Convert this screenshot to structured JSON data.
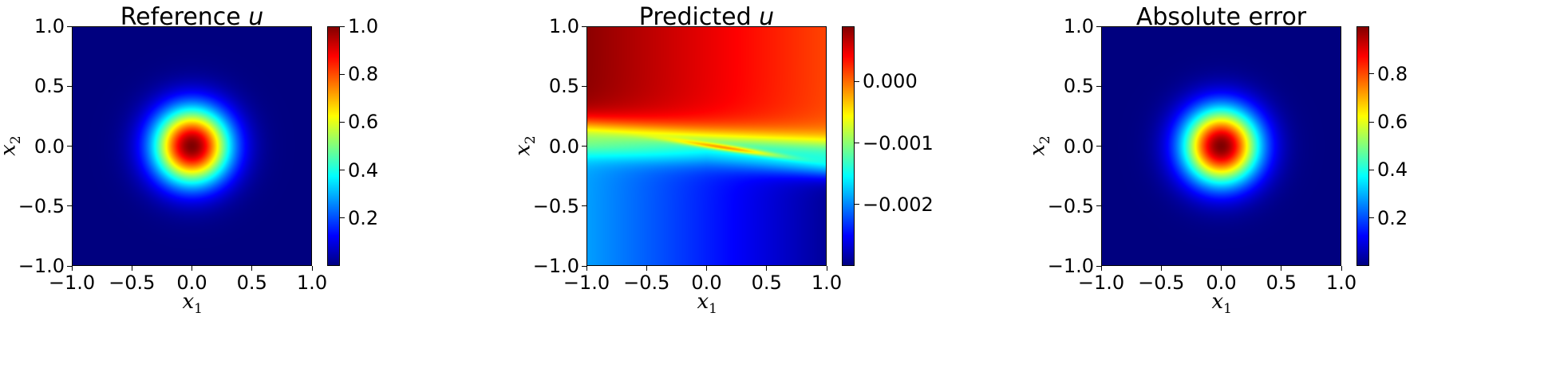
{
  "figure": {
    "colormap": "jet",
    "colormap_stops": [
      "#00007f",
      "#0000ff",
      "#007fff",
      "#00ffff",
      "#7fff7f",
      "#ffff00",
      "#ff7f00",
      "#ff0000",
      "#7f0000"
    ]
  },
  "chart_data": [
    {
      "type": "heatmap",
      "title": "Reference u",
      "title_prefix": "Reference ",
      "title_symbol": "u",
      "xlabel": "x1",
      "xlabel_base": "x",
      "xlabel_sub": "1",
      "ylabel": "x2",
      "ylabel_base": "x",
      "ylabel_sub": "2",
      "xlim": [
        -1.0,
        1.0
      ],
      "ylim": [
        -1.0,
        1.0
      ],
      "xticks": [
        -1.0,
        -0.5,
        0.0,
        0.5,
        1.0
      ],
      "xtick_labels": [
        "−1.0",
        "−0.5",
        "0.0",
        "0.5",
        "1.0"
      ],
      "yticks": [
        -1.0,
        -0.5,
        0.0,
        0.5,
        1.0
      ],
      "ytick_labels": [
        "−1.0",
        "−0.5",
        "0.0",
        "0.5",
        "1.0"
      ],
      "colorbar": {
        "range": [
          0.0,
          1.0
        ],
        "ticks": [
          0.2,
          0.4,
          0.6,
          0.8,
          1.0
        ],
        "tick_labels": [
          "0.2",
          "0.4",
          "0.6",
          "0.8",
          "1.0"
        ]
      },
      "field": {
        "kind": "gaussian",
        "center": [
          0.0,
          0.0
        ],
        "peak": 1.0,
        "base": 0.0,
        "sigma": 0.22
      }
    },
    {
      "type": "heatmap",
      "title": "Predicted u",
      "title_prefix": "Predicted ",
      "title_symbol": "u",
      "xlabel": "x1",
      "xlabel_base": "x",
      "xlabel_sub": "1",
      "ylabel": "x2",
      "ylabel_base": "x",
      "ylabel_sub": "2",
      "xlim": [
        -1.0,
        1.0
      ],
      "ylim": [
        -1.0,
        1.0
      ],
      "xticks": [
        -1.0,
        -0.5,
        0.0,
        0.5,
        1.0
      ],
      "xtick_labels": [
        "−1.0",
        "−0.5",
        "0.0",
        "0.5",
        "1.0"
      ],
      "yticks": [
        -1.0,
        -0.5,
        0.0,
        0.5,
        1.0
      ],
      "ytick_labels": [
        "−1.0",
        "−0.5",
        "0.0",
        "0.5",
        "1.0"
      ],
      "colorbar": {
        "range": [
          -0.003,
          0.0009
        ],
        "ticks": [
          -0.002,
          -0.001,
          0.0
        ],
        "tick_labels": [
          "−0.002",
          "−0.001",
          "0.000"
        ]
      },
      "field": {
        "kind": "tilted-transition",
        "top_left": 0.00085,
        "top_right": 0.00015,
        "bottom_left": -0.0019,
        "bottom_right": -0.0029,
        "band_value": -0.0008,
        "streak_value": 0.0001
      }
    },
    {
      "type": "heatmap",
      "title": "Absolute error",
      "title_prefix": "Absolute error",
      "title_symbol": "",
      "xlabel": "x1",
      "xlabel_base": "x",
      "xlabel_sub": "1",
      "ylabel": "x2",
      "ylabel_base": "x",
      "ylabel_sub": "2",
      "xlim": [
        -1.0,
        1.0
      ],
      "ylim": [
        -1.0,
        1.0
      ],
      "xticks": [
        -1.0,
        -0.5,
        0.0,
        0.5,
        1.0
      ],
      "xtick_labels": [
        "−1.0",
        "−0.5",
        "0.0",
        "0.5",
        "1.0"
      ],
      "yticks": [
        -1.0,
        -0.5,
        0.0,
        0.5,
        1.0
      ],
      "ytick_labels": [
        "−1.0",
        "−0.5",
        "0.0",
        "0.5",
        "1.0"
      ],
      "colorbar": {
        "range": [
          0.0,
          0.999
        ],
        "ticks": [
          0.2,
          0.4,
          0.6,
          0.8
        ],
        "tick_labels": [
          "0.2",
          "0.4",
          "0.6",
          "0.8"
        ]
      },
      "field": {
        "kind": "gaussian",
        "center": [
          0.0,
          0.0
        ],
        "peak": 0.999,
        "base": 0.0,
        "sigma": 0.22
      }
    }
  ]
}
